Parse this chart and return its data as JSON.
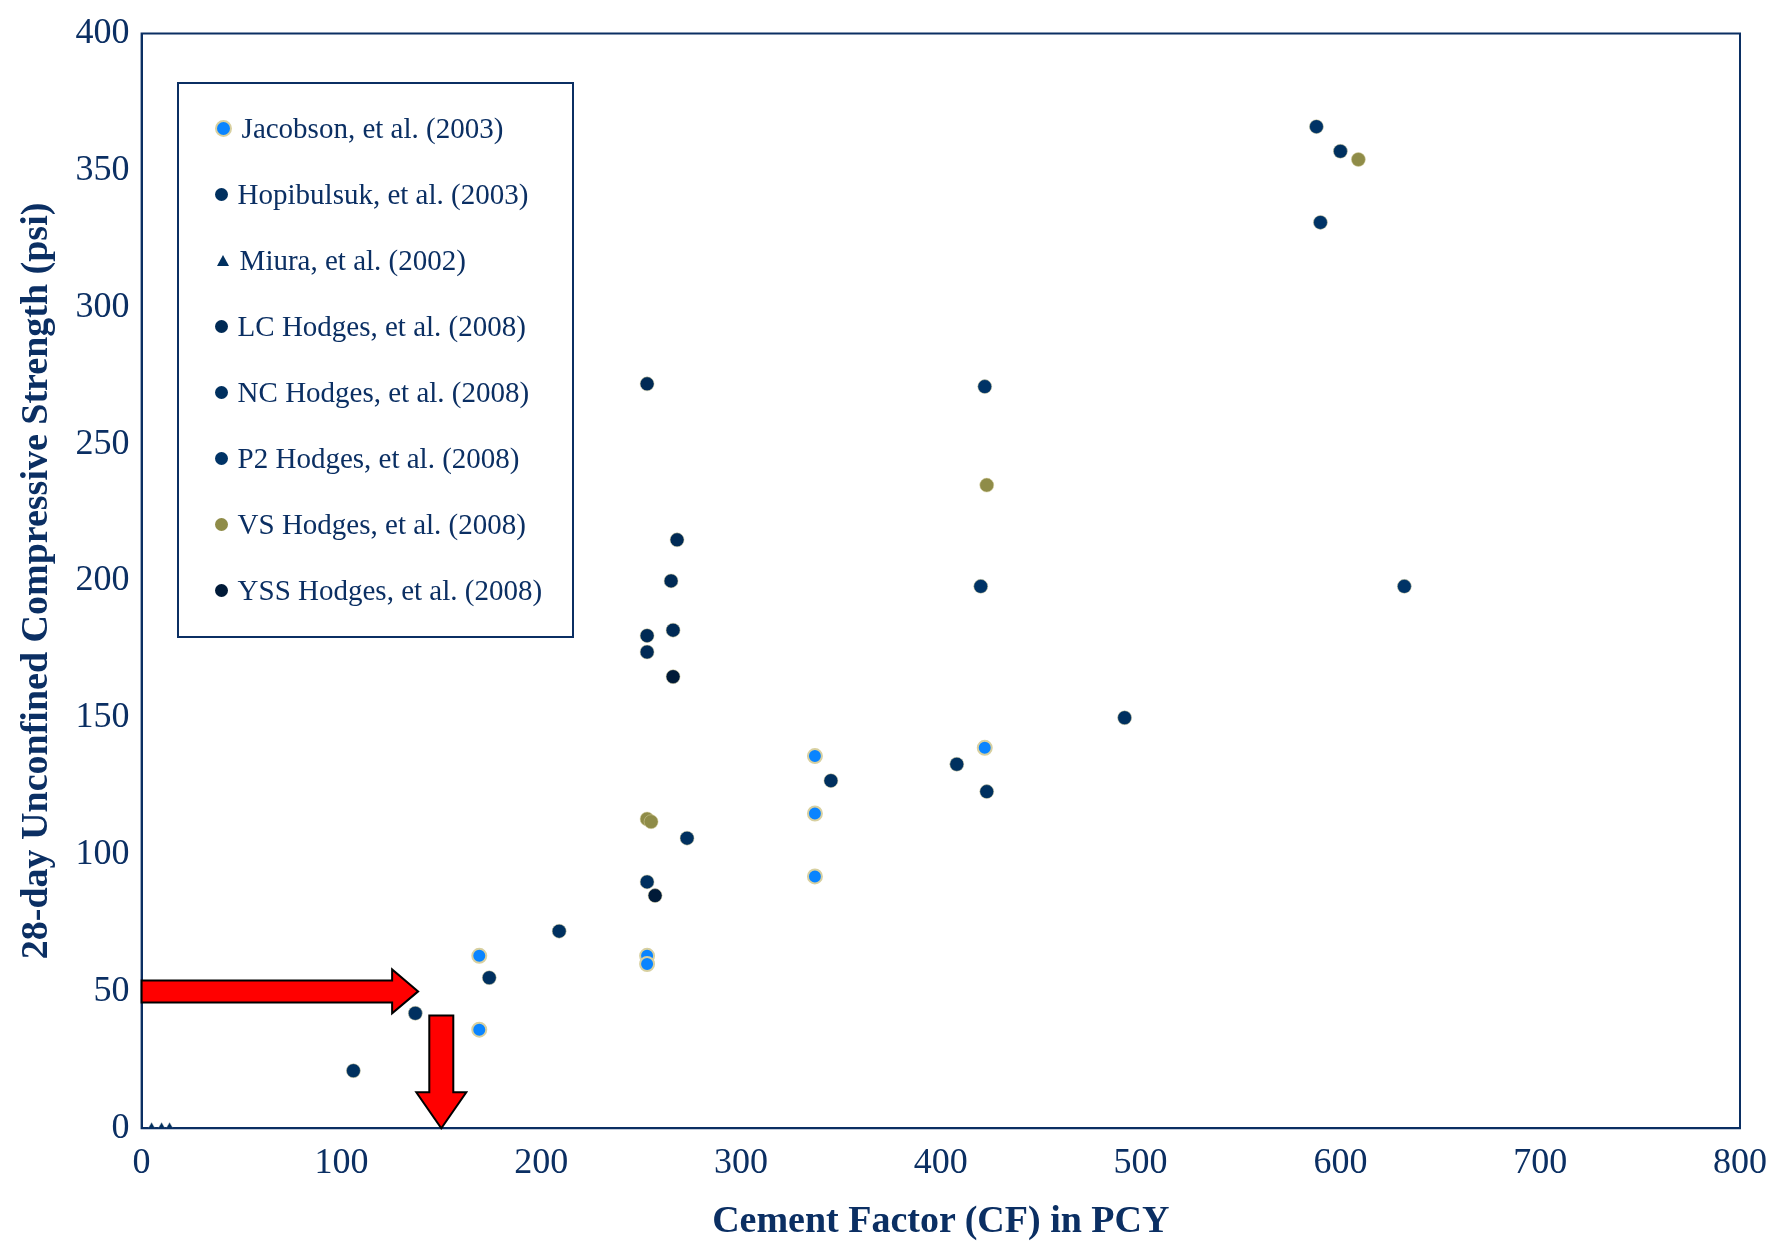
{
  "chart_data": {
    "type": "scatter",
    "xlabel": "Cement Factor (CF) in PCY",
    "ylabel": "28-day Unconfined Compressive Strength (psi)",
    "xlim": [
      0,
      800
    ],
    "xticks": [
      0,
      100,
      200,
      300,
      400,
      500,
      600,
      700,
      800
    ],
    "ylim": [
      0,
      400
    ],
    "yticks": [
      0,
      50,
      100,
      150,
      200,
      250,
      300,
      350,
      400
    ],
    "grid": false,
    "legend": "top left",
    "marker": "circle",
    "series": [
      {
        "name": "Jacobson, et al. (2003)",
        "color": "#0a84ff",
        "x": [
          169,
          169,
          253,
          253,
          337,
          337,
          337,
          422
        ],
        "values": [
          63,
          36,
          63,
          60,
          136,
          115,
          92,
          139
        ]
      },
      {
        "name": "Hopibulsuk, et al. (2003)",
        "color": "#00305f",
        "x": [
          106,
          137,
          174,
          209,
          273,
          345,
          408,
          423,
          492
        ],
        "values": [
          21,
          42,
          55,
          72,
          106,
          127,
          133,
          123,
          150
        ]
      },
      {
        "name": "Miura, et al. (2002)",
        "color": "#00305f",
        "marker": "triangle",
        "x": [
          5,
          10,
          14
        ],
        "values": [
          0,
          0,
          0
        ]
      },
      {
        "name": "LC Hodges, et al. (2008)",
        "color": "#002a55",
        "x": [
          253,
          268,
          265,
          266,
          253,
          253
        ],
        "values": [
          272,
          215,
          200,
          182,
          180,
          174
        ]
      },
      {
        "name": "NC Hodges, et al. (2008)",
        "color": "#00305f",
        "x": [
          600,
          253
        ],
        "values": [
          357,
          90
        ]
      },
      {
        "name": "P2 Hodges, et al. (2008)",
        "color": "#003366",
        "x": [
          422,
          420,
          632,
          588,
          590
        ],
        "values": [
          271,
          198,
          198,
          366,
          331
        ]
      },
      {
        "name": "VS Hodges, et al. (2008)",
        "color": "#8f8c48",
        "x": [
          609,
          423,
          253,
          255
        ],
        "values": [
          354,
          235,
          113,
          112
        ]
      },
      {
        "name": "YSS Hodges, et al. (2008)",
        "color": "#001a38",
        "x": [
          257,
          266
        ],
        "values": [
          85,
          165
        ]
      }
    ]
  }
}
